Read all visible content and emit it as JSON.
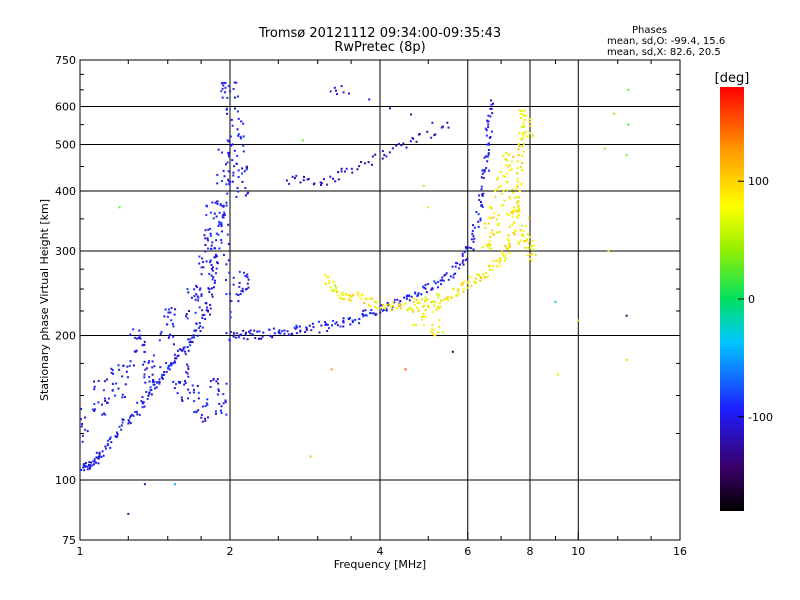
{
  "header": {
    "title_line1": "Tromsø 20121112 09:34:00-09:35:43",
    "title_line2": "RwPretec (8p)"
  },
  "stats": {
    "heading": "Phases",
    "line_o": "mean, sd,O: -99.4, 15.6",
    "line_x": "mean, sd,X: 82.6, 20.5"
  },
  "chart_data": {
    "type": "scatter",
    "title": "Tromsø 20121112 09:34:00-09:35:43",
    "subtitle": "RwPretec (8p)",
    "xlabel": "Frequency [MHz]",
    "ylabel": "Stationary phase Virtual Height [km]",
    "x_scale": "log",
    "y_scale": "log",
    "xlim": [
      1,
      16
    ],
    "ylim": [
      75,
      750
    ],
    "x_ticks": [
      1,
      2,
      4,
      6,
      8,
      10,
      16
    ],
    "x_tick_labels": [
      "1",
      "2",
      "4",
      "6",
      "8",
      "10",
      "16"
    ],
    "y_ticks": [
      75,
      100,
      200,
      300,
      400,
      500,
      600,
      750
    ],
    "y_tick_labels": [
      "75",
      "100",
      "200",
      "300",
      "400",
      "500",
      "600",
      "750"
    ],
    "grid": true,
    "grid_x": [
      2,
      4,
      6,
      8,
      10
    ],
    "grid_y": [
      100,
      200,
      300,
      400,
      500,
      600
    ],
    "colorbar": {
      "label": "[deg]",
      "range": [
        -180,
        180
      ],
      "ticks": [
        100,
        0,
        -100
      ],
      "tick_labels": [
        "100",
        "0",
        "-100"
      ],
      "colormap": "rainbow (black-purple-blue-cyan-green-yellow-orange-red)"
    },
    "phase_stats": {
      "O": {
        "mean": -99.4,
        "sd": 15.6
      },
      "X": {
        "mean": 82.6,
        "sd": 20.5
      }
    },
    "series": [
      {
        "mode": "O",
        "phase_mean": -99.4,
        "trace": [
          {
            "x": 1.0,
            "y": 106
          },
          {
            "x": 1.05,
            "y": 108
          },
          {
            "x": 1.1,
            "y": 112
          },
          {
            "x": 1.2,
            "y": 128
          },
          {
            "x": 1.3,
            "y": 140
          },
          {
            "x": 1.4,
            "y": 155
          },
          {
            "x": 1.5,
            "y": 172
          },
          {
            "x": 1.6,
            "y": 185
          },
          {
            "x": 1.7,
            "y": 200
          },
          {
            "x": 1.8,
            "y": 225
          },
          {
            "x": 1.85,
            "y": 265
          },
          {
            "x": 1.9,
            "y": 320
          },
          {
            "x": 1.95,
            "y": 390
          },
          {
            "x": 2.0,
            "y": 200
          },
          {
            "x": 2.2,
            "y": 201
          },
          {
            "x": 2.5,
            "y": 203
          },
          {
            "x": 2.8,
            "y": 206
          },
          {
            "x": 3.2,
            "y": 210
          },
          {
            "x": 3.6,
            "y": 217
          },
          {
            "x": 4.0,
            "y": 226
          },
          {
            "x": 4.5,
            "y": 237
          },
          {
            "x": 5.0,
            "y": 250
          },
          {
            "x": 5.5,
            "y": 268
          },
          {
            "x": 6.0,
            "y": 295
          },
          {
            "x": 6.3,
            "y": 350
          },
          {
            "x": 6.5,
            "y": 430
          },
          {
            "x": 6.6,
            "y": 520
          },
          {
            "x": 6.7,
            "y": 620
          }
        ],
        "spread": [
          {
            "x": 1.0,
            "y": 130
          },
          {
            "x": 1.1,
            "y": 150
          },
          {
            "x": 1.2,
            "y": 160
          },
          {
            "x": 1.3,
            "y": 190
          },
          {
            "x": 1.4,
            "y": 170
          },
          {
            "x": 1.5,
            "y": 210
          },
          {
            "x": 1.6,
            "y": 160
          },
          {
            "x": 1.7,
            "y": 235
          },
          {
            "x": 1.75,
            "y": 145
          },
          {
            "x": 1.8,
            "y": 290
          },
          {
            "x": 1.85,
            "y": 350
          },
          {
            "x": 1.9,
            "y": 150
          },
          {
            "x": 1.95,
            "y": 450
          },
          {
            "x": 2.0,
            "y": 620
          },
          {
            "x": 2.05,
            "y": 520
          },
          {
            "x": 2.1,
            "y": 420
          },
          {
            "x": 2.1,
            "y": 250
          }
        ],
        "upper_layer": [
          {
            "x": 2.6,
            "y": 420
          },
          {
            "x": 2.8,
            "y": 425
          },
          {
            "x": 3.0,
            "y": 410
          },
          {
            "x": 3.2,
            "y": 425
          },
          {
            "x": 3.4,
            "y": 440
          },
          {
            "x": 3.7,
            "y": 455
          },
          {
            "x": 4.0,
            "y": 470
          },
          {
            "x": 4.3,
            "y": 490
          },
          {
            "x": 4.6,
            "y": 505
          },
          {
            "x": 5.0,
            "y": 525
          },
          {
            "x": 5.5,
            "y": 545
          },
          {
            "x": 3.2,
            "y": 648
          },
          {
            "x": 3.4,
            "y": 650
          }
        ]
      },
      {
        "mode": "X",
        "phase_mean": 82.6,
        "trace": [
          {
            "x": 3.1,
            "y": 265
          },
          {
            "x": 3.3,
            "y": 245
          },
          {
            "x": 3.6,
            "y": 240
          },
          {
            "x": 4.0,
            "y": 232
          },
          {
            "x": 4.5,
            "y": 228
          },
          {
            "x": 5.0,
            "y": 235
          },
          {
            "x": 5.5,
            "y": 242
          },
          {
            "x": 6.0,
            "y": 255
          },
          {
            "x": 6.5,
            "y": 270
          },
          {
            "x": 7.0,
            "y": 285
          },
          {
            "x": 7.3,
            "y": 310
          },
          {
            "x": 7.5,
            "y": 360
          },
          {
            "x": 7.6,
            "y": 420
          },
          {
            "x": 7.7,
            "y": 500
          },
          {
            "x": 7.7,
            "y": 600
          }
        ],
        "spread": [
          {
            "x": 6.6,
            "y": 320
          },
          {
            "x": 6.8,
            "y": 350
          },
          {
            "x": 7.0,
            "y": 400
          },
          {
            "x": 7.2,
            "y": 450
          },
          {
            "x": 7.4,
            "y": 380
          },
          {
            "x": 7.8,
            "y": 330
          },
          {
            "x": 8.0,
            "y": 300
          },
          {
            "x": 7.9,
            "y": 550
          },
          {
            "x": 5.2,
            "y": 215
          },
          {
            "x": 4.8,
            "y": 225
          }
        ]
      },
      {
        "mode": "noise",
        "points": [
          {
            "x": 1.2,
            "y": 370
          },
          {
            "x": 1.35,
            "y": 98
          },
          {
            "x": 1.55,
            "y": 98
          },
          {
            "x": 1.25,
            "y": 85
          },
          {
            "x": 2.8,
            "y": 510
          },
          {
            "x": 2.9,
            "y": 112
          },
          {
            "x": 3.2,
            "y": 170
          },
          {
            "x": 4.5,
            "y": 170
          },
          {
            "x": 4.9,
            "y": 410
          },
          {
            "x": 5.0,
            "y": 370
          },
          {
            "x": 5.6,
            "y": 185
          },
          {
            "x": 9.0,
            "y": 235
          },
          {
            "x": 9.1,
            "y": 166
          },
          {
            "x": 10.0,
            "y": 215
          },
          {
            "x": 11.8,
            "y": 580
          },
          {
            "x": 11.3,
            "y": 490
          },
          {
            "x": 12.5,
            "y": 475
          },
          {
            "x": 12.5,
            "y": 220
          },
          {
            "x": 12.5,
            "y": 178
          },
          {
            "x": 12.6,
            "y": 550
          },
          {
            "x": 12.6,
            "y": 650
          },
          {
            "x": 11.5,
            "y": 300
          }
        ]
      }
    ]
  }
}
